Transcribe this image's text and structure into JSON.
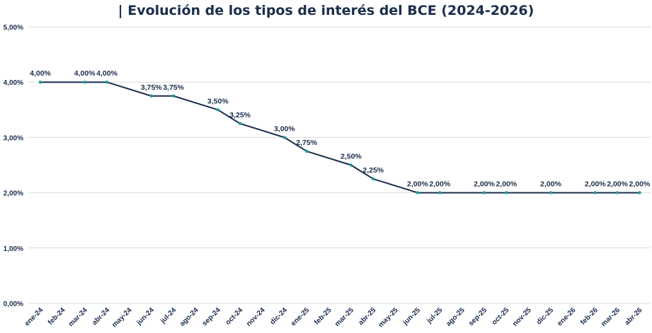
{
  "chart_data": {
    "type": "line",
    "title": "| Evolución de los tipos de interés del BCE (2024-2026)",
    "xlabel": "",
    "ylabel": "",
    "ylim": [
      0,
      5
    ],
    "grid": true,
    "legend": "none",
    "y_tick_labels": [
      "0,00%",
      "1,00%",
      "2,00%",
      "3,00%",
      "4,00%",
      "5,00%"
    ],
    "categories": [
      "ene-24",
      "feb-24",
      "mar-24",
      "abr-24",
      "may-24",
      "jun-24",
      "jul-24",
      "ago-24",
      "sep-24",
      "oct-24",
      "nov-24",
      "dic-24",
      "ene-25",
      "feb-25",
      "mar-25",
      "abr-25",
      "may-25",
      "jun-25",
      "jul-25",
      "ago-25",
      "sep-25",
      "oct-25",
      "nov-25",
      "dic-25",
      "ene-26",
      "feb-26",
      "mar-26",
      "abr-26"
    ],
    "points": [
      {
        "x": "ene-24",
        "y": 4.0,
        "label": "4,00%"
      },
      {
        "x": "mar-24",
        "y": 4.0,
        "label": "4,00%"
      },
      {
        "x": "abr-24",
        "y": 4.0,
        "label": "4,00%"
      },
      {
        "x": "jun-24",
        "y": 3.75,
        "label": "3,75%"
      },
      {
        "x": "jul-24",
        "y": 3.75,
        "label": "3,75%"
      },
      {
        "x": "sep-24",
        "y": 3.5,
        "label": "3,50%"
      },
      {
        "x": "oct-24",
        "y": 3.25,
        "label": "3,25%"
      },
      {
        "x": "dic-24",
        "y": 3.0,
        "label": "3,00%"
      },
      {
        "x": "ene-25",
        "y": 2.75,
        "label": "2,75%"
      },
      {
        "x": "mar-25",
        "y": 2.5,
        "label": "2,50%"
      },
      {
        "x": "abr-25",
        "y": 2.25,
        "label": "2,25%"
      },
      {
        "x": "jun-25",
        "y": 2.0,
        "label": "2,00%"
      },
      {
        "x": "jul-25",
        "y": 2.0,
        "label": "2,00%"
      },
      {
        "x": "sep-25",
        "y": 2.0,
        "label": "2,00%"
      },
      {
        "x": "oct-25",
        "y": 2.0,
        "label": "2,00%"
      },
      {
        "x": "dic-25",
        "y": 2.0,
        "label": "2,00%"
      },
      {
        "x": "feb-26",
        "y": 2.0,
        "label": "2,00%"
      },
      {
        "x": "mar-26",
        "y": 2.0,
        "label": "2,00%"
      },
      {
        "x": "abr-26",
        "y": 2.0,
        "label": "2,00%"
      }
    ],
    "colors": {
      "line": "#1b2e4b",
      "marker": "#1a9a9a",
      "grid": "#d9d9d9",
      "text": "#1b2e4b"
    }
  }
}
